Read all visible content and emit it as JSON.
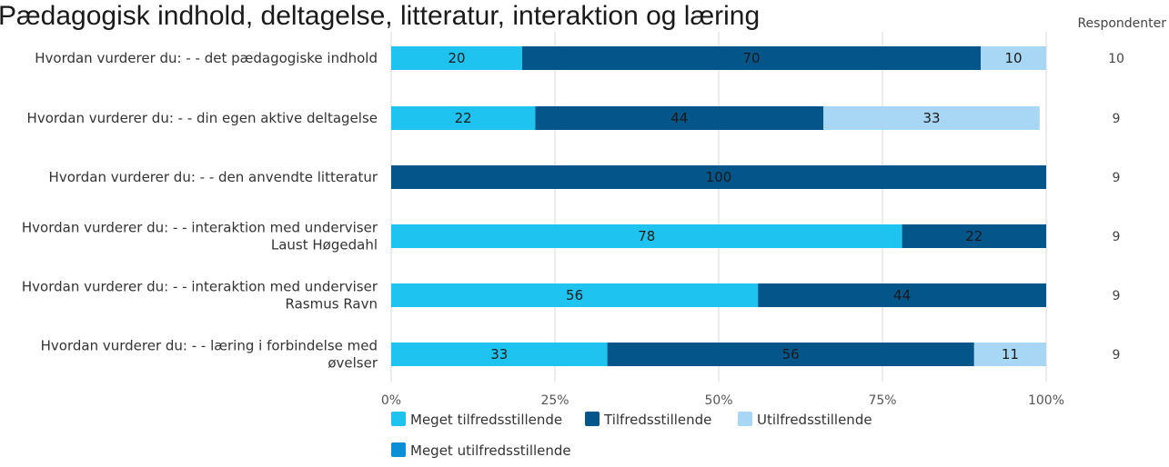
{
  "title": "Pædagogisk indhold, deltagelse, litteratur, interaktion og læring",
  "respondents_header": "Respondenter",
  "colors": {
    "meget_tilfreds": "#1fc3f0",
    "tilfreds": "#03558a",
    "utilfreds": "#a8d6f5",
    "meget_utilfreds": "#0a8fd6",
    "grid": "#d9d9d9"
  },
  "chart_data": {
    "type": "bar",
    "orientation": "horizontal",
    "stacked": true,
    "percent": true,
    "categories": [
      [
        "Hvordan vurderer du: - - det pædagogiske indhold"
      ],
      [
        "Hvordan vurderer du: - - din egen aktive deltagelse"
      ],
      [
        "Hvordan vurderer du: - - den anvendte litteratur"
      ],
      [
        "Hvordan vurderer du: - - interaktion med underviser",
        "Laust Høgedahl"
      ],
      [
        "Hvordan vurderer du: - - interaktion med underviser",
        "Rasmus Ravn"
      ],
      [
        "Hvordan vurderer du: - - læring i forbindelse med",
        "øvelser"
      ]
    ],
    "series": [
      {
        "name": "Meget tilfredsstillende",
        "values": [
          20,
          22,
          0,
          78,
          56,
          33
        ]
      },
      {
        "name": "Tilfredsstillende",
        "values": [
          70,
          44,
          100,
          22,
          44,
          56
        ]
      },
      {
        "name": "Utilfredsstillende",
        "values": [
          10,
          33,
          0,
          0,
          0,
          11
        ]
      },
      {
        "name": "Meget utilfredsstillende",
        "values": [
          0,
          0,
          0,
          0,
          0,
          0
        ]
      }
    ],
    "respondents": [
      10,
      9,
      9,
      9,
      9,
      9
    ],
    "xticks": [
      "0%",
      "25%",
      "50%",
      "75%",
      "100%"
    ],
    "xlim": [
      0,
      100
    ],
    "grid": true,
    "legend_position": "bottom-left"
  }
}
